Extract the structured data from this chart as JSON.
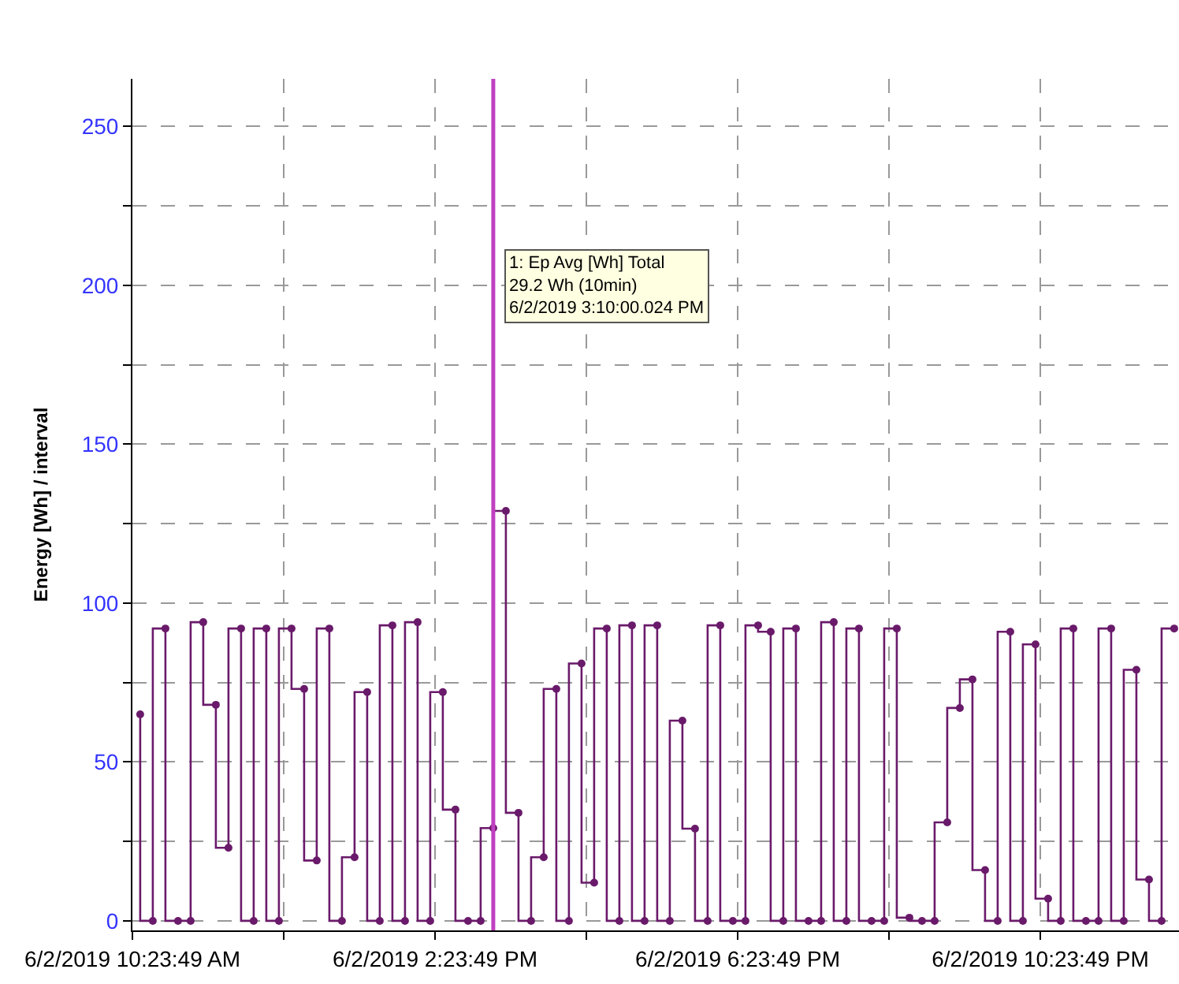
{
  "chart_data": {
    "type": "step",
    "ylabel": "Energy [Wh] / interval",
    "x": [
      "2019-06-02T10:30",
      "2019-06-02T10:40",
      "2019-06-02T10:50",
      "2019-06-02T11:00",
      "2019-06-02T11:10",
      "2019-06-02T11:20",
      "2019-06-02T11:30",
      "2019-06-02T11:40",
      "2019-06-02T11:50",
      "2019-06-02T12:00",
      "2019-06-02T12:10",
      "2019-06-02T12:20",
      "2019-06-02T12:30",
      "2019-06-02T12:40",
      "2019-06-02T12:50",
      "2019-06-02T13:00",
      "2019-06-02T13:10",
      "2019-06-02T13:20",
      "2019-06-02T13:30",
      "2019-06-02T13:40",
      "2019-06-02T13:50",
      "2019-06-02T14:00",
      "2019-06-02T14:10",
      "2019-06-02T14:20",
      "2019-06-02T14:30",
      "2019-06-02T14:40",
      "2019-06-02T14:50",
      "2019-06-02T15:00",
      "2019-06-02T15:10",
      "2019-06-02T15:20",
      "2019-06-02T15:30",
      "2019-06-02T15:40",
      "2019-06-02T15:50",
      "2019-06-02T16:00",
      "2019-06-02T16:10",
      "2019-06-02T16:20",
      "2019-06-02T16:30",
      "2019-06-02T16:40",
      "2019-06-02T16:50",
      "2019-06-02T17:00",
      "2019-06-02T17:10",
      "2019-06-02T17:20",
      "2019-06-02T17:30",
      "2019-06-02T17:40",
      "2019-06-02T17:50",
      "2019-06-02T18:00",
      "2019-06-02T18:10",
      "2019-06-02T18:20",
      "2019-06-02T18:30",
      "2019-06-02T18:40",
      "2019-06-02T18:50",
      "2019-06-02T19:00",
      "2019-06-02T19:10",
      "2019-06-02T19:20",
      "2019-06-02T19:30",
      "2019-06-02T19:40",
      "2019-06-02T19:50",
      "2019-06-02T20:00",
      "2019-06-02T20:10",
      "2019-06-02T20:20",
      "2019-06-02T20:30",
      "2019-06-02T20:40",
      "2019-06-02T20:50",
      "2019-06-02T21:00",
      "2019-06-02T21:10",
      "2019-06-02T21:20",
      "2019-06-02T21:30",
      "2019-06-02T21:40",
      "2019-06-02T21:50",
      "2019-06-02T22:00",
      "2019-06-02T22:10",
      "2019-06-02T22:20",
      "2019-06-02T22:30",
      "2019-06-02T22:40",
      "2019-06-02T22:50",
      "2019-06-02T23:00",
      "2019-06-02T23:10",
      "2019-06-02T23:20",
      "2019-06-02T23:30",
      "2019-06-02T23:40",
      "2019-06-02T23:50",
      "2019-06-03T00:00",
      "2019-06-03T00:10"
    ],
    "series": [
      {
        "color": "#6a1a6a",
        "values": [
          65,
          0,
          92,
          0,
          0,
          94,
          68,
          23,
          92,
          0,
          92,
          0,
          92,
          73,
          19,
          92,
          0,
          20,
          72,
          0,
          93,
          0,
          94,
          0,
          72,
          35,
          0,
          0,
          29.2,
          129,
          34,
          0,
          20,
          73,
          0,
          81,
          12,
          92,
          0,
          93,
          0,
          93,
          0,
          63,
          29,
          0,
          93,
          0,
          0,
          93,
          91,
          0,
          92,
          0,
          0,
          94,
          0,
          92,
          0,
          0,
          92,
          1,
          0,
          0,
          31,
          67,
          76,
          16,
          0,
          91,
          0,
          87,
          7,
          0,
          92,
          0,
          0,
          92,
          0,
          79,
          13,
          0,
          92
        ]
      }
    ],
    "xlim": [
      "2019-06-02T10:23:49",
      "2019-06-03T00:13:48"
    ],
    "xticks": [
      {
        "value": "2019-06-02T10:23:49",
        "label": "6/2/2019 10:23:49 AM"
      },
      {
        "value": "2019-06-02T12:23:49",
        "label": null
      },
      {
        "value": "2019-06-02T14:23:49",
        "label": "6/2/2019 2:23:49 PM"
      },
      {
        "value": "2019-06-02T16:23:49",
        "label": null
      },
      {
        "value": "2019-06-02T18:23:49",
        "label": "6/2/2019 6:23:49 PM"
      },
      {
        "value": "2019-06-02T20:23:49",
        "label": null
      },
      {
        "value": "2019-06-02T22:23:49",
        "label": "6/2/2019 10:23:49 PM"
      }
    ],
    "ylim": [
      -3,
      265
    ],
    "yticks": [
      0,
      {
        "value": 25,
        "label": null
      },
      50,
      {
        "value": 75,
        "label": null
      },
      100,
      {
        "value": 125,
        "label": null
      },
      150,
      {
        "value": 175,
        "label": null
      },
      200,
      {
        "value": 225,
        "label": null
      },
      250
    ],
    "grid": true,
    "marker": "circle",
    "line_style": "solid",
    "ref_lines": [
      {
        "axis": "x",
        "value": "2019-06-02T15:10",
        "color": "#c040c0"
      }
    ],
    "annotations": [
      "1: Ep Avg [Wh] Total\n29.2 Wh (10min)\n6/2/2019 3:10:00.024 PM"
    ]
  }
}
